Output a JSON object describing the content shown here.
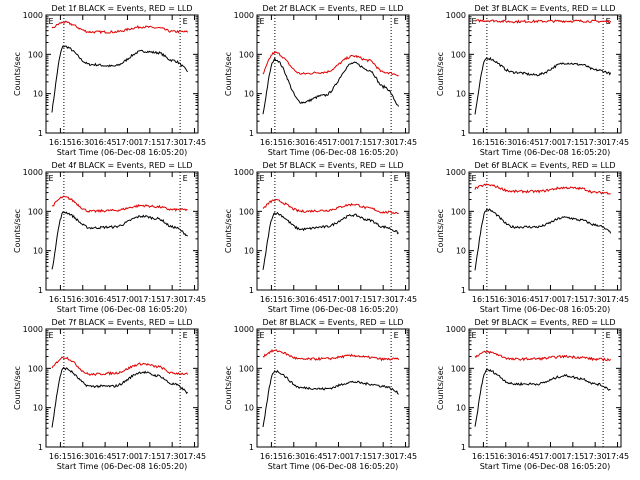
{
  "figure": {
    "xlabel": "Start Time (06-Dec-08 16:05:20)",
    "ylabel": "Counts/sec",
    "xticks": [
      "16:15",
      "16:30",
      "16:45",
      "17:00",
      "17:15",
      "17:30",
      "17:45"
    ],
    "yticks": [
      "1",
      "10",
      "100",
      "1000"
    ],
    "corner_marks": [
      "E",
      "E"
    ]
  },
  "chart_data": [
    {
      "type": "line",
      "title": "Det 1f BLACK = Events, RED = LLD",
      "y_log": true,
      "ylim": [
        1,
        1000
      ],
      "x_minutes_since_16_05_20": [
        0,
        12,
        30,
        45,
        65,
        75,
        85,
        100
      ],
      "series": [
        {
          "color": "#000000",
          "values": [
            0,
            160,
            55,
            50,
            120,
            110,
            70,
            30
          ]
        },
        {
          "color": "#e00000",
          "values": [
            400,
            650,
            370,
            370,
            500,
            470,
            380,
            370
          ]
        }
      ]
    },
    {
      "type": "line",
      "title": "Det 2f BLACK = Events, RED = LLD",
      "y_log": true,
      "ylim": [
        1,
        1000
      ],
      "series": [
        {
          "color": "#000000",
          "values": [
            0,
            75,
            6,
            9,
            60,
            40,
            15,
            3
          ]
        },
        {
          "color": "#e00000",
          "values": [
            20,
            110,
            32,
            35,
            90,
            70,
            35,
            28
          ]
        }
      ]
    },
    {
      "type": "line",
      "title": "Det 3f BLACK = Events, RED = LLD",
      "y_log": true,
      "ylim": [
        1,
        1000
      ],
      "series": [
        {
          "color": "#000000",
          "values": [
            0,
            80,
            35,
            30,
            60,
            55,
            40,
            30
          ]
        },
        {
          "color": "#e00000",
          "values": [
            700,
            720,
            680,
            690,
            700,
            700,
            690,
            680
          ]
        }
      ]
    },
    {
      "type": "line",
      "title": "Det 4f BLACK = Events, RED = LLD",
      "y_log": true,
      "ylim": [
        1,
        1000
      ],
      "series": [
        {
          "color": "#000000",
          "values": [
            0,
            95,
            38,
            40,
            75,
            65,
            40,
            20
          ]
        },
        {
          "color": "#e00000",
          "values": [
            110,
            230,
            100,
            105,
            140,
            130,
            110,
            110
          ]
        }
      ]
    },
    {
      "type": "line",
      "title": "Det 5f BLACK = Events, RED = LLD",
      "y_log": true,
      "ylim": [
        1,
        1000
      ],
      "series": [
        {
          "color": "#000000",
          "values": [
            0,
            90,
            35,
            40,
            80,
            60,
            40,
            25
          ]
        },
        {
          "color": "#e00000",
          "values": [
            100,
            190,
            100,
            105,
            150,
            120,
            95,
            90
          ]
        }
      ]
    },
    {
      "type": "line",
      "title": "Det 6f BLACK = Events, RED = LLD",
      "y_log": true,
      "ylim": [
        1,
        1000
      ],
      "series": [
        {
          "color": "#000000",
          "values": [
            0,
            110,
            40,
            40,
            70,
            60,
            45,
            25
          ]
        },
        {
          "color": "#e00000",
          "values": [
            350,
            470,
            320,
            320,
            400,
            380,
            300,
            290
          ]
        }
      ]
    },
    {
      "type": "line",
      "title": "Det 7f BLACK = Events, RED = LLD",
      "y_log": true,
      "ylim": [
        1,
        1000
      ],
      "series": [
        {
          "color": "#000000",
          "values": [
            0,
            100,
            35,
            35,
            80,
            65,
            40,
            20
          ]
        },
        {
          "color": "#e00000",
          "values": [
            80,
            190,
            70,
            75,
            130,
            110,
            75,
            70
          ]
        }
      ]
    },
    {
      "type": "line",
      "title": "Det 8f BLACK = Events, RED = LLD",
      "y_log": true,
      "ylim": [
        1,
        1000
      ],
      "series": [
        {
          "color": "#000000",
          "values": [
            0,
            85,
            32,
            30,
            45,
            40,
            35,
            20
          ]
        },
        {
          "color": "#e00000",
          "values": [
            180,
            280,
            170,
            175,
            210,
            190,
            170,
            175
          ]
        }
      ]
    },
    {
      "type": "line",
      "title": "Det 9f BLACK = Events, RED = LLD",
      "y_log": true,
      "ylim": [
        1,
        1000
      ],
      "series": [
        {
          "color": "#000000",
          "values": [
            0,
            90,
            40,
            40,
            65,
            55,
            40,
            25
          ]
        },
        {
          "color": "#e00000",
          "values": [
            180,
            260,
            170,
            175,
            200,
            190,
            170,
            165
          ]
        }
      ]
    }
  ]
}
